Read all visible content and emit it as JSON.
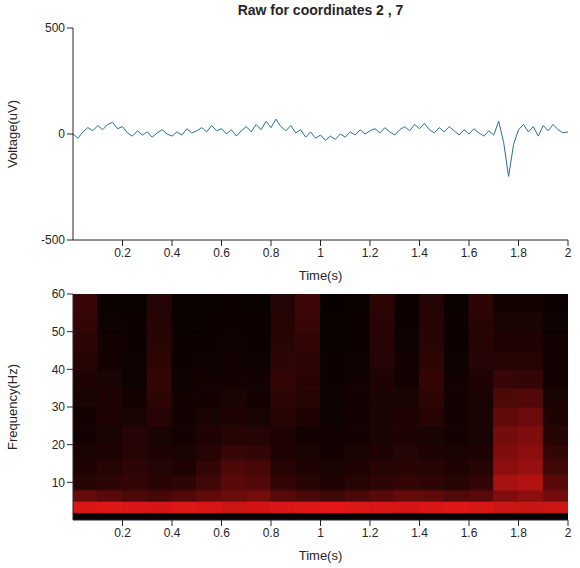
{
  "chart_data": [
    {
      "type": "line",
      "title": "Raw for coordinates 2 , 7",
      "x_label": "Time(s)",
      "y_label": "Voltage(uV)",
      "color": "#2a6f97",
      "grid": false,
      "xlim": [
        0,
        2
      ],
      "ylim": [
        -500,
        500
      ],
      "xticks": [
        0.2,
        0.4,
        0.6,
        0.8,
        1,
        1.2,
        1.4,
        1.6,
        1.8,
        2
      ],
      "yticks": [
        -500,
        0,
        500
      ],
      "x": [
        0,
        0.02,
        0.04,
        0.06,
        0.08,
        0.1,
        0.12,
        0.14,
        0.16,
        0.18,
        0.2,
        0.22,
        0.24,
        0.26,
        0.28,
        0.3,
        0.32,
        0.34,
        0.36,
        0.38,
        0.4,
        0.42,
        0.44,
        0.46,
        0.48,
        0.5,
        0.52,
        0.54,
        0.56,
        0.58,
        0.6,
        0.62,
        0.64,
        0.66,
        0.68,
        0.7,
        0.72,
        0.74,
        0.76,
        0.78,
        0.8,
        0.82,
        0.84,
        0.86,
        0.88,
        0.9,
        0.92,
        0.94,
        0.96,
        0.98,
        1.0,
        1.02,
        1.04,
        1.06,
        1.08,
        1.1,
        1.12,
        1.14,
        1.16,
        1.18,
        1.2,
        1.22,
        1.24,
        1.26,
        1.28,
        1.3,
        1.32,
        1.34,
        1.36,
        1.38,
        1.4,
        1.42,
        1.44,
        1.46,
        1.48,
        1.5,
        1.52,
        1.54,
        1.56,
        1.58,
        1.6,
        1.62,
        1.64,
        1.66,
        1.68,
        1.7,
        1.72,
        1.74,
        1.76,
        1.78,
        1.8,
        1.82,
        1.84,
        1.86,
        1.88,
        1.9,
        1.92,
        1.94,
        1.96,
        1.98,
        2.0
      ],
      "values": [
        0,
        -20,
        10,
        30,
        15,
        40,
        20,
        45,
        55,
        25,
        35,
        5,
        -10,
        15,
        -5,
        10,
        -15,
        5,
        20,
        0,
        -10,
        10,
        -5,
        25,
        5,
        15,
        30,
        10,
        40,
        15,
        25,
        0,
        20,
        -10,
        15,
        35,
        10,
        45,
        20,
        60,
        30,
        70,
        35,
        15,
        40,
        5,
        20,
        -15,
        10,
        -20,
        -5,
        -30,
        -10,
        -25,
        0,
        -15,
        10,
        -5,
        20,
        0,
        15,
        25,
        5,
        30,
        10,
        -5,
        20,
        35,
        15,
        45,
        25,
        50,
        20,
        5,
        30,
        10,
        35,
        15,
        -5,
        20,
        0,
        25,
        5,
        -10,
        15,
        -5,
        60,
        -40,
        -200,
        -50,
        20,
        45,
        10,
        35,
        -10,
        40,
        15,
        45,
        20,
        5,
        10
      ]
    },
    {
      "type": "heatmap",
      "x_label": "Time(s)",
      "y_label": "Frequency(Hz)",
      "xlim": [
        0,
        2
      ],
      "ylim": [
        0,
        60
      ],
      "xticks": [
        0.2,
        0.4,
        0.6,
        0.8,
        1,
        1.2,
        1.4,
        1.6,
        1.8,
        2
      ],
      "yticks": [
        10,
        20,
        30,
        40,
        50,
        60
      ],
      "zlim": [
        0,
        1
      ],
      "colors": [
        "#000000",
        "#ff1a1a"
      ],
      "x_bins": [
        0,
        0.1,
        0.2,
        0.3,
        0.4,
        0.5,
        0.6,
        0.7,
        0.8,
        0.9,
        1.0,
        1.1,
        1.2,
        1.3,
        1.4,
        1.5,
        1.6,
        1.7,
        1.8,
        1.9,
        2.0
      ],
      "y_bins": [
        0,
        2,
        5,
        8,
        12,
        16,
        20,
        25,
        30,
        35,
        40,
        45,
        50,
        55,
        60
      ],
      "cells": [
        [
          0.02,
          0.02,
          0.02,
          0.02,
          0.02,
          0.02,
          0.02,
          0.02,
          0.02,
          0.02,
          0.02,
          0.02,
          0.02,
          0.02,
          0.02,
          0.02,
          0.02,
          0.02,
          0.02,
          0.02
        ],
        [
          0.85,
          0.88,
          0.86,
          0.84,
          0.87,
          0.85,
          0.8,
          0.82,
          0.86,
          0.88,
          0.9,
          0.87,
          0.85,
          0.83,
          0.86,
          0.88,
          0.85,
          0.8,
          0.78,
          0.8
        ],
        [
          0.4,
          0.35,
          0.3,
          0.28,
          0.32,
          0.38,
          0.42,
          0.45,
          0.35,
          0.3,
          0.25,
          0.3,
          0.35,
          0.4,
          0.38,
          0.32,
          0.35,
          0.5,
          0.55,
          0.45
        ],
        [
          0.15,
          0.18,
          0.2,
          0.16,
          0.18,
          0.25,
          0.35,
          0.32,
          0.2,
          0.15,
          0.12,
          0.15,
          0.18,
          0.2,
          0.18,
          0.15,
          0.2,
          0.65,
          0.7,
          0.35
        ],
        [
          0.12,
          0.15,
          0.18,
          0.14,
          0.12,
          0.2,
          0.3,
          0.28,
          0.15,
          0.12,
          0.1,
          0.12,
          0.15,
          0.16,
          0.15,
          0.12,
          0.15,
          0.55,
          0.6,
          0.25
        ],
        [
          0.1,
          0.12,
          0.15,
          0.12,
          0.1,
          0.15,
          0.22,
          0.2,
          0.12,
          0.1,
          0.08,
          0.1,
          0.12,
          0.14,
          0.12,
          0.1,
          0.12,
          0.5,
          0.55,
          0.2
        ],
        [
          0.08,
          0.1,
          0.14,
          0.1,
          0.08,
          0.12,
          0.15,
          0.14,
          0.12,
          0.08,
          0.07,
          0.08,
          0.1,
          0.12,
          0.1,
          0.08,
          0.1,
          0.45,
          0.5,
          0.15
        ],
        [
          0.08,
          0.12,
          0.1,
          0.15,
          0.08,
          0.1,
          0.12,
          0.1,
          0.15,
          0.12,
          0.06,
          0.08,
          0.1,
          0.12,
          0.15,
          0.08,
          0.1,
          0.38,
          0.42,
          0.12
        ],
        [
          0.1,
          0.12,
          0.08,
          0.18,
          0.07,
          0.08,
          0.1,
          0.08,
          0.18,
          0.15,
          0.06,
          0.08,
          0.1,
          0.1,
          0.18,
          0.08,
          0.1,
          0.3,
          0.32,
          0.1
        ],
        [
          0.12,
          0.1,
          0.06,
          0.2,
          0.06,
          0.07,
          0.08,
          0.07,
          0.2,
          0.16,
          0.05,
          0.07,
          0.12,
          0.08,
          0.2,
          0.07,
          0.12,
          0.22,
          0.2,
          0.08
        ],
        [
          0.15,
          0.08,
          0.06,
          0.18,
          0.05,
          0.06,
          0.07,
          0.06,
          0.18,
          0.18,
          0.05,
          0.06,
          0.14,
          0.07,
          0.18,
          0.06,
          0.14,
          0.15,
          0.15,
          0.08
        ],
        [
          0.18,
          0.07,
          0.05,
          0.16,
          0.05,
          0.05,
          0.06,
          0.05,
          0.16,
          0.2,
          0.04,
          0.05,
          0.15,
          0.06,
          0.16,
          0.05,
          0.15,
          0.12,
          0.12,
          0.07
        ],
        [
          0.2,
          0.06,
          0.05,
          0.15,
          0.04,
          0.05,
          0.05,
          0.05,
          0.15,
          0.22,
          0.04,
          0.05,
          0.16,
          0.05,
          0.15,
          0.05,
          0.16,
          0.1,
          0.1,
          0.06
        ],
        [
          0.22,
          0.05,
          0.04,
          0.14,
          0.04,
          0.04,
          0.05,
          0.04,
          0.14,
          0.24,
          0.03,
          0.04,
          0.18,
          0.05,
          0.14,
          0.04,
          0.18,
          0.08,
          0.08,
          0.05
        ]
      ]
    }
  ]
}
